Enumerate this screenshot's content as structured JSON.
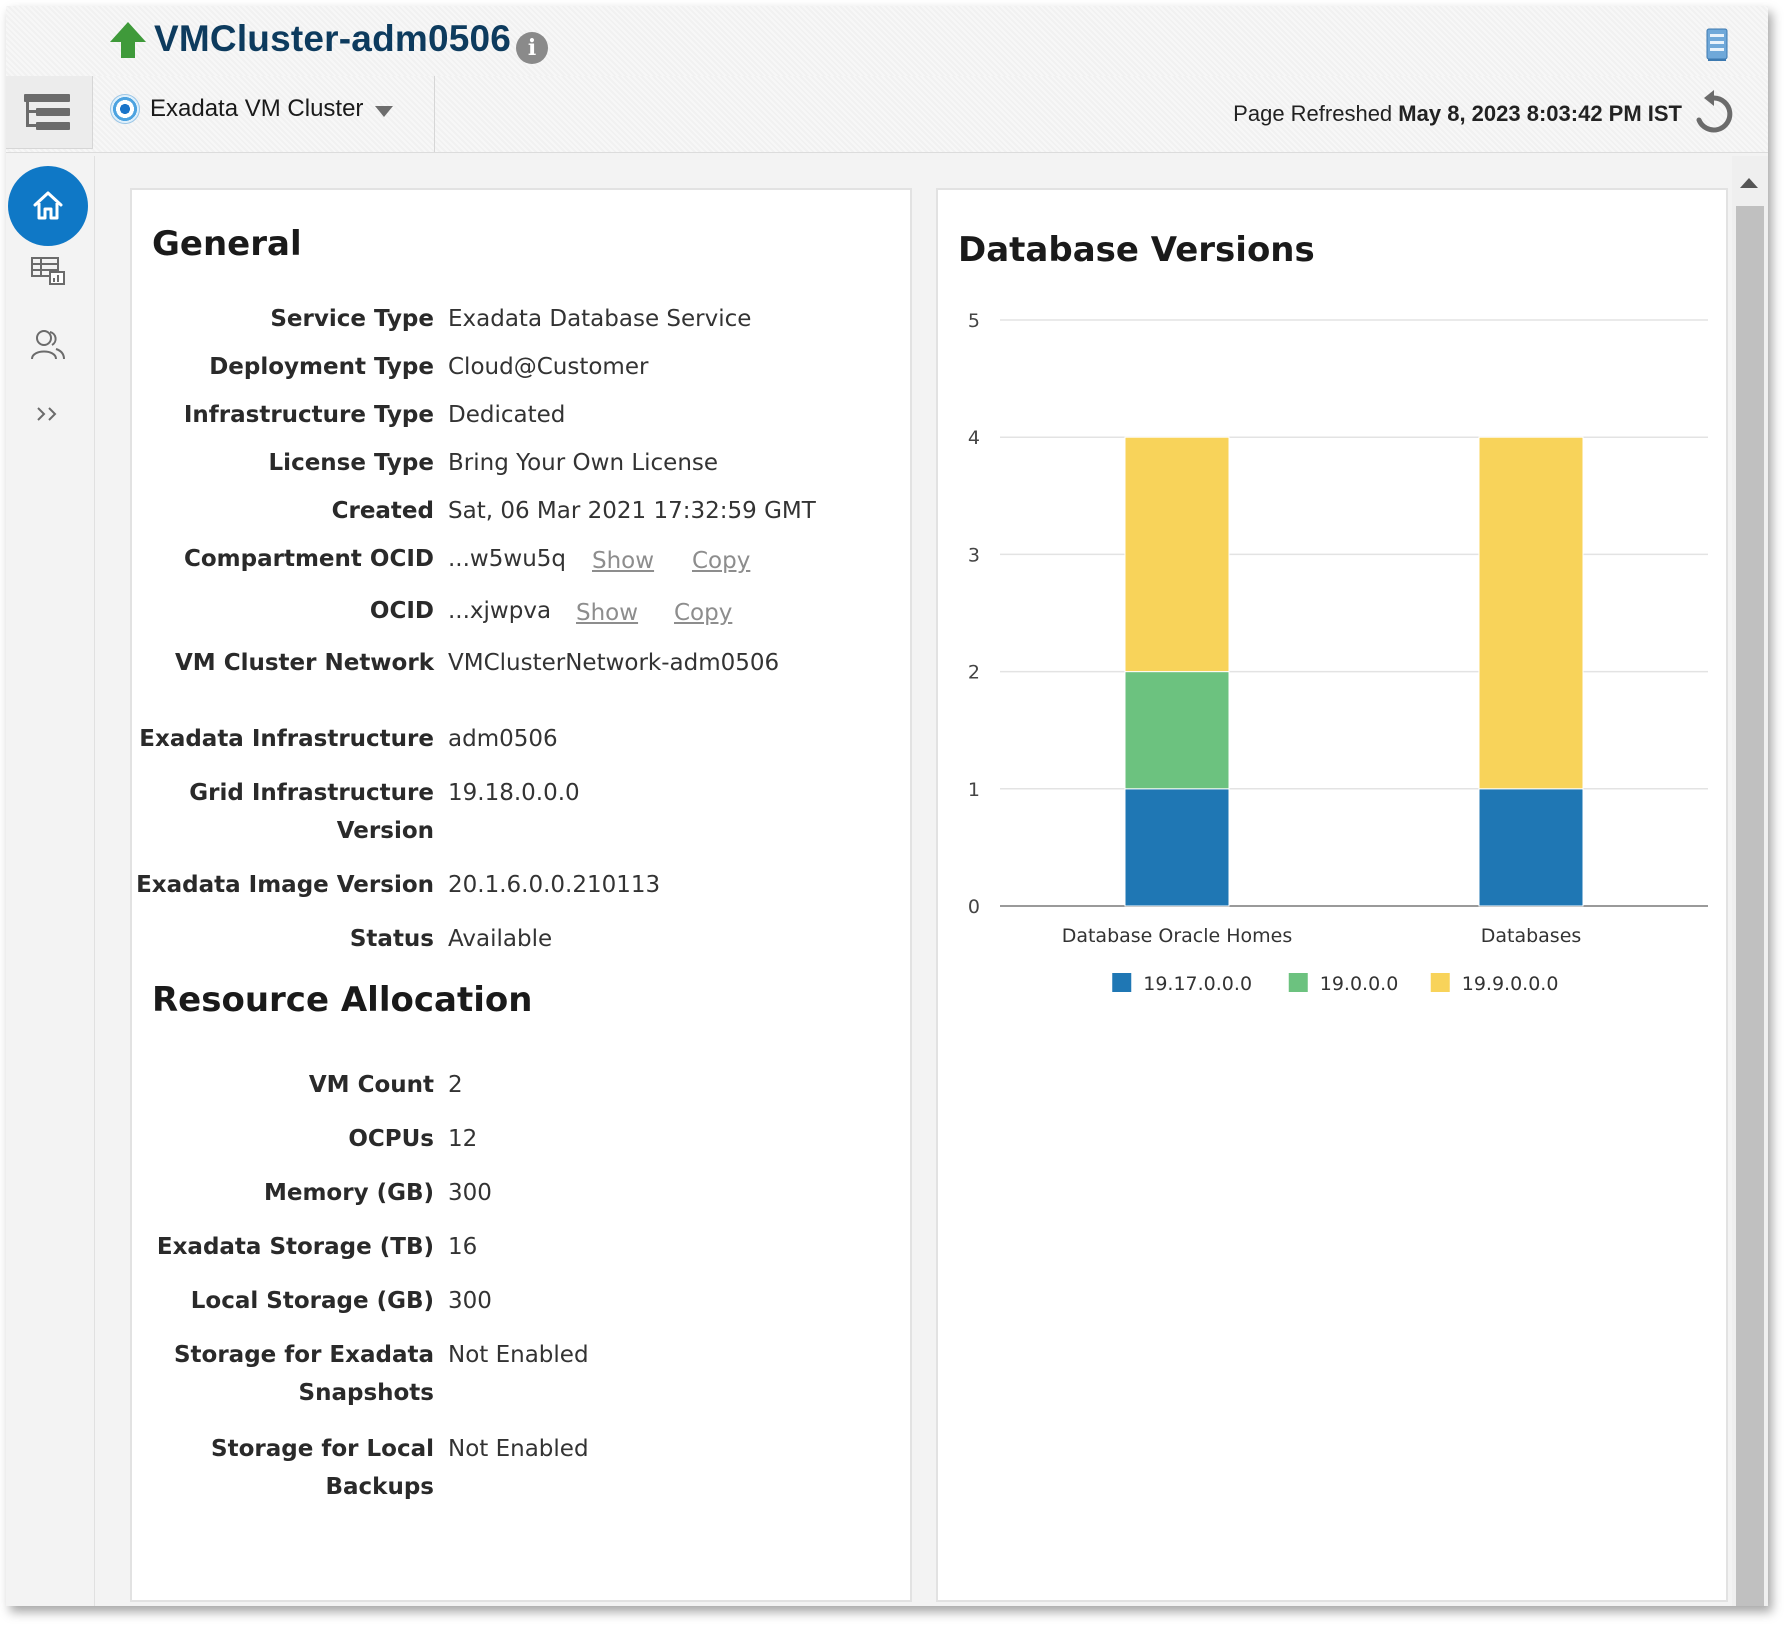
{
  "header": {
    "title": "VMCluster-adm0506",
    "target_type": "Exadata VM Cluster",
    "refresh_label": "Page Refreshed",
    "refresh_time": "May 8, 2023 8:03:42 PM IST"
  },
  "general": {
    "title": "General",
    "rows": [
      {
        "label": "Service Type",
        "value": "Exadata Database Service"
      },
      {
        "label": "Deployment Type",
        "value": "Cloud@Customer"
      },
      {
        "label": "Infrastructure Type",
        "value": "Dedicated"
      },
      {
        "label": "License Type",
        "value": "Bring Your Own License"
      },
      {
        "label": "Created",
        "value": "Sat, 06 Mar 2021 17:32:59 GMT"
      },
      {
        "label": "Compartment OCID",
        "value": "...w5wu5q"
      },
      {
        "label": "OCID",
        "value": "...xjwpva"
      },
      {
        "label": "VM Cluster Network",
        "value": "VMClusterNetwork-adm0506"
      },
      {
        "label": "Exadata Infrastructure",
        "value": "adm0506"
      },
      {
        "label": "Grid Infrastructure",
        "label2": "Version",
        "value": "19.18.0.0.0"
      },
      {
        "label": "Exadata Image Version",
        "value": "20.1.6.0.0.210113"
      },
      {
        "label": "Status",
        "value": "Available"
      }
    ],
    "show_label": "Show",
    "copy_label": "Copy"
  },
  "resource": {
    "title": "Resource Allocation",
    "rows": [
      {
        "label": "VM Count",
        "value": "2"
      },
      {
        "label": "OCPUs",
        "value": "12"
      },
      {
        "label": "Memory (GB)",
        "value": "300"
      },
      {
        "label": "Exadata Storage (TB)",
        "value": "16"
      },
      {
        "label": "Local Storage (GB)",
        "value": "300"
      },
      {
        "label": "Storage for Exadata",
        "label2": "Snapshots",
        "value": "Not Enabled"
      },
      {
        "label": "Storage for Local",
        "label2": "Backups",
        "value": "Not Enabled"
      }
    ]
  },
  "chart_data": {
    "type": "bar",
    "stacked": true,
    "title": "Database Versions",
    "categories": [
      "Database Oracle Homes",
      "Databases"
    ],
    "series": [
      {
        "name": "19.17.0.0.0",
        "values": [
          1,
          1
        ],
        "color": "#1f77b4"
      },
      {
        "name": "19.0.0.0",
        "values": [
          1,
          0
        ],
        "color": "#6cc27f"
      },
      {
        "name": "19.9.0.0.0",
        "values": [
          2,
          3
        ],
        "color": "#f8d35a"
      }
    ],
    "ylim": [
      0,
      5
    ],
    "yticks": [
      "0",
      "1",
      "2",
      "3",
      "4",
      "5"
    ],
    "grid": true,
    "legend": "bottom"
  },
  "colors": {
    "accent": "#0f78c6",
    "title": "#0d3b5e",
    "status_up": "#3f9a3a"
  }
}
